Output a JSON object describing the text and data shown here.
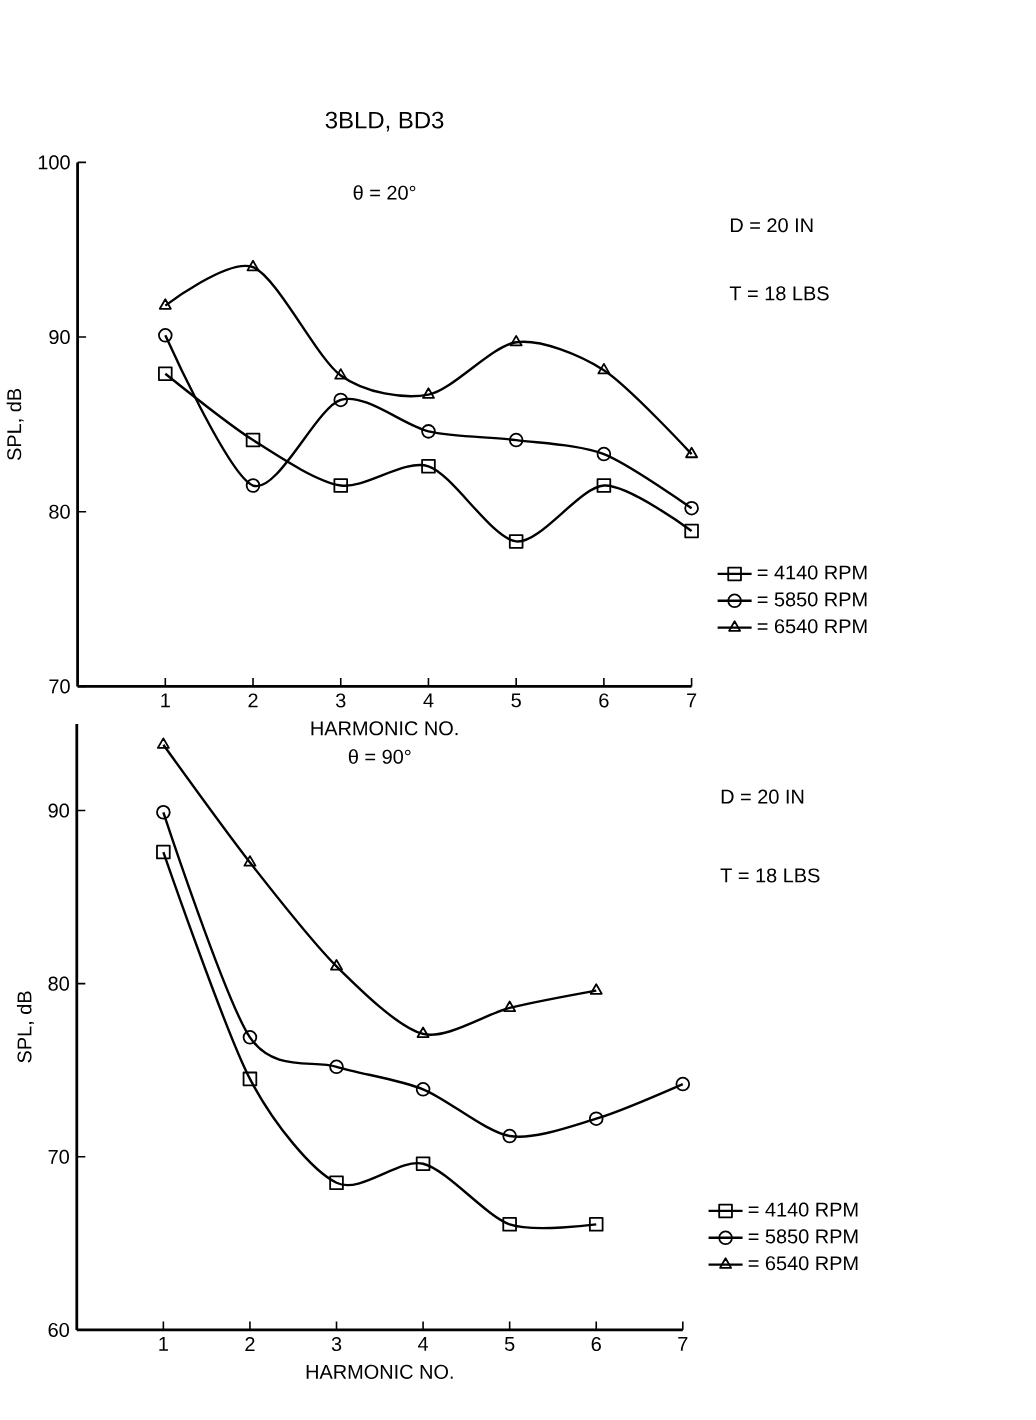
{
  "chart_data": [
    {
      "type": "line",
      "title": "3BLD, BD3",
      "xlabel": "HARMONIC NO.",
      "ylabel": "SPL, dB",
      "annotations": [
        "θ = 20°",
        "D = 20 IN",
        "T = 18 LBS"
      ],
      "x": [
        1,
        2,
        3,
        4,
        5,
        6,
        7
      ],
      "series": [
        {
          "name": "= 4140 RPM",
          "color": "#000000",
          "marker": "square",
          "values": [
            87.9,
            84.1,
            81.5,
            82.6,
            78.3,
            81.5,
            78.9
          ]
        },
        {
          "name": "= 5850 RPM",
          "color": "#000000",
          "marker": "circle",
          "values": [
            90.1,
            81.5,
            86.4,
            84.6,
            84.1,
            83.3,
            80.2
          ]
        },
        {
          "name": "= 6540 RPM",
          "color": "#000000",
          "marker": "triangle",
          "values": [
            91.8,
            94.0,
            87.8,
            86.7,
            89.7,
            88.1,
            83.3
          ]
        }
      ],
      "xlim": [
        0,
        7
      ],
      "xticks": [
        1,
        2,
        3,
        4,
        5,
        6,
        7
      ],
      "ylim": [
        70,
        100
      ],
      "yticks": [
        70,
        80,
        90,
        100
      ],
      "grid": false,
      "legend": "right",
      "line_style": "solid"
    },
    {
      "type": "line",
      "xlabel": "HARMONIC NO.",
      "ylabel": "SPL, dB",
      "annotations": [
        "θ = 90°",
        "D = 20 IN",
        "T = 18 LBS"
      ],
      "x": [
        1,
        2,
        3,
        4,
        5,
        6,
        7
      ],
      "series": [
        {
          "name": "= 4140 RPM",
          "color": "#000000",
          "marker": "square",
          "values": [
            87.6,
            74.5,
            68.5,
            69.6,
            66.1,
            66.1,
            null
          ]
        },
        {
          "name": "= 5850 RPM",
          "color": "#000000",
          "marker": "circle",
          "values": [
            89.9,
            76.9,
            75.2,
            73.9,
            71.2,
            72.2,
            74.2
          ]
        },
        {
          "name": "= 6540 RPM",
          "color": "#000000",
          "marker": "triangle",
          "values": [
            93.8,
            87.0,
            81.0,
            77.1,
            78.6,
            79.6,
            null
          ]
        }
      ],
      "xlim": [
        0,
        7
      ],
      "xticks": [
        1,
        2,
        3,
        4,
        5,
        6,
        7
      ],
      "ylim": [
        60,
        95
      ],
      "yticks": [
        60,
        70,
        80,
        90
      ],
      "grid": false,
      "legend": "right",
      "line_style": "solid"
    }
  ]
}
